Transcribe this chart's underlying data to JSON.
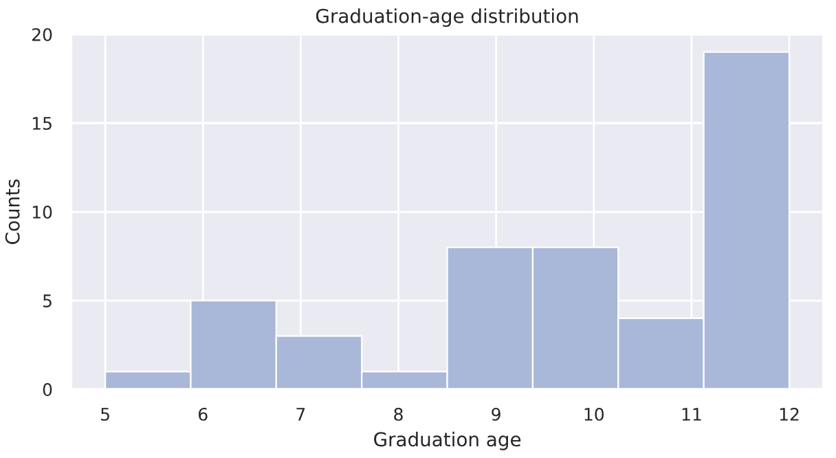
{
  "chart_data": {
    "type": "histogram",
    "title": "Graduation-age distribution",
    "xlabel": "Graduation age",
    "ylabel": "Counts",
    "bins": [
      5,
      5.875,
      6.75,
      7.625,
      8.5,
      9.375,
      10.25,
      11.125,
      12
    ],
    "values": [
      1,
      5,
      3,
      1,
      8,
      8,
      4,
      19
    ],
    "color": "#a9b8d8",
    "xlim": [
      4.65,
      12.35
    ],
    "xticks": [
      5,
      6,
      7,
      8,
      9,
      10,
      11,
      12
    ],
    "ylim": [
      0,
      20
    ],
    "yticks": [
      0,
      5,
      10,
      15,
      20
    ],
    "grid": true,
    "legend": false
  }
}
